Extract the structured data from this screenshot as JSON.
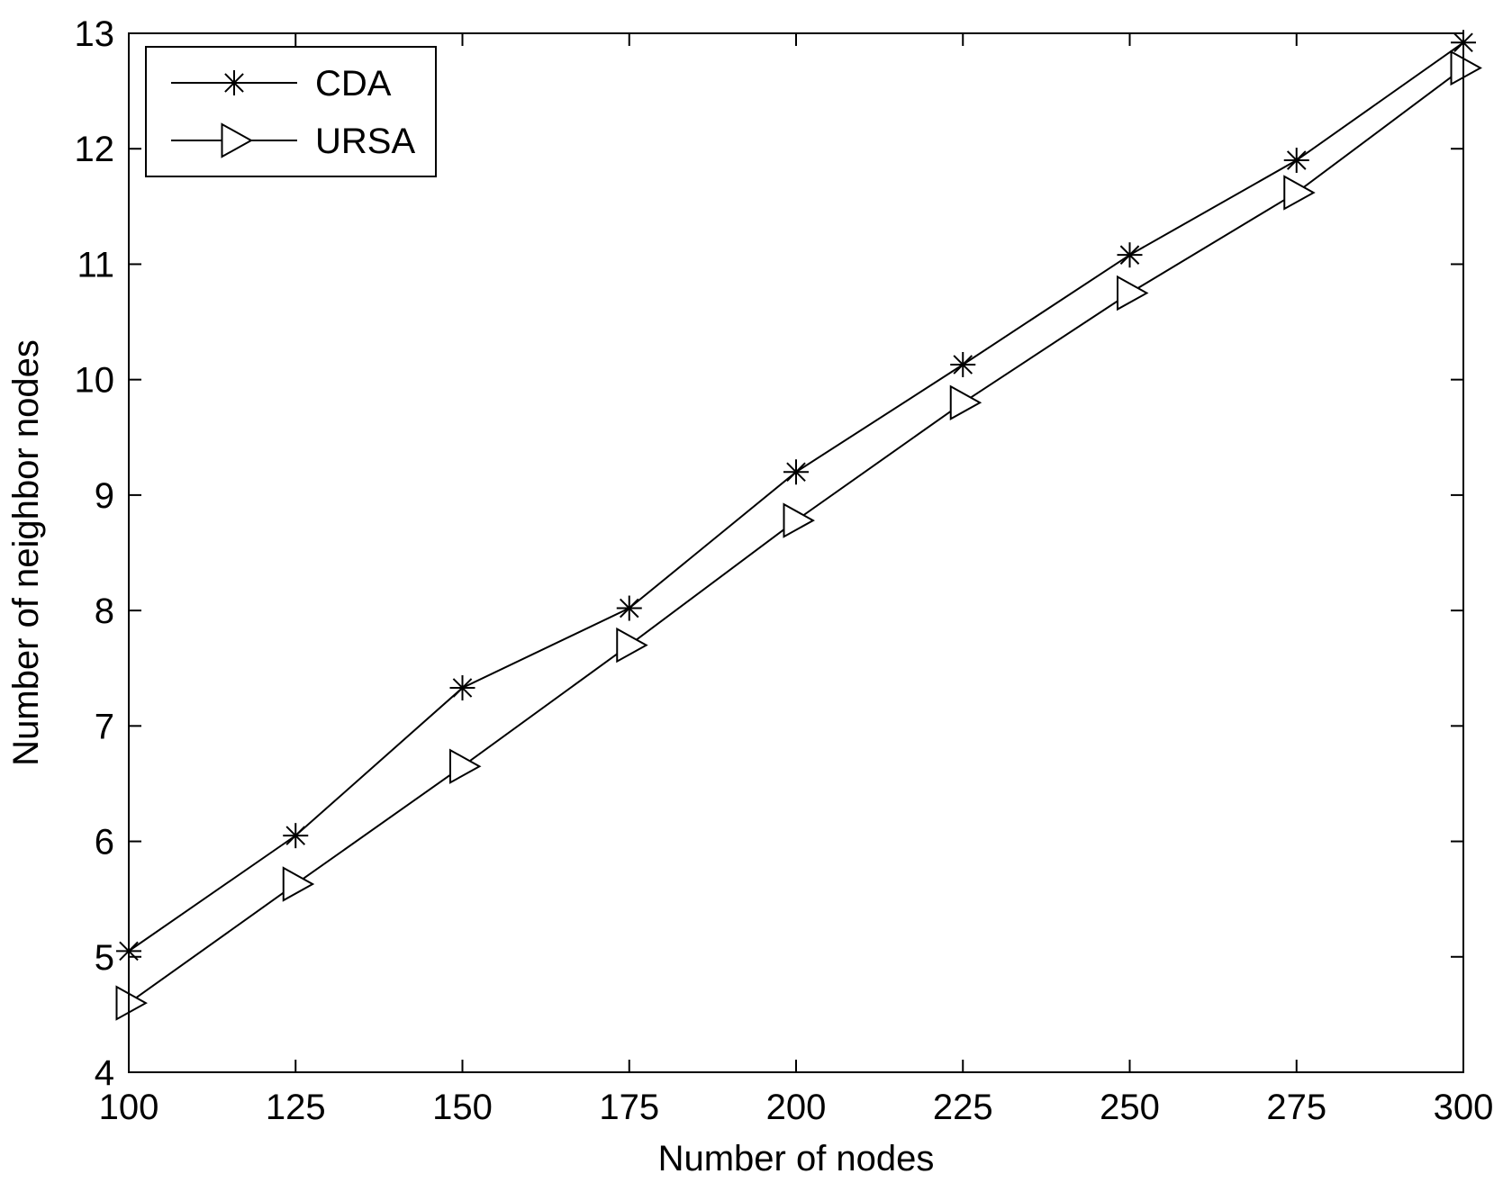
{
  "chart_data": {
    "type": "line",
    "title": "",
    "xlabel": "Number of nodes",
    "ylabel": "Number of neighbor nodes",
    "x": [
      100,
      125,
      150,
      175,
      200,
      225,
      250,
      275,
      300
    ],
    "xlim": [
      100,
      300
    ],
    "ylim": [
      4,
      13
    ],
    "xticks": [
      100,
      125,
      150,
      175,
      200,
      225,
      250,
      275,
      300
    ],
    "yticks": [
      4,
      5,
      6,
      7,
      8,
      9,
      10,
      11,
      12,
      13
    ],
    "grid": false,
    "legend_position": "top-left",
    "series": [
      {
        "name": "CDA",
        "marker": "asterisk",
        "color": "#000000",
        "values": [
          5.05,
          6.05,
          7.33,
          8.02,
          9.2,
          10.13,
          11.08,
          11.9,
          12.92
        ]
      },
      {
        "name": "URSA",
        "marker": "triangle-right",
        "color": "#000000",
        "values": [
          4.6,
          5.63,
          6.65,
          7.7,
          8.78,
          9.8,
          10.75,
          11.62,
          12.7
        ]
      }
    ]
  }
}
